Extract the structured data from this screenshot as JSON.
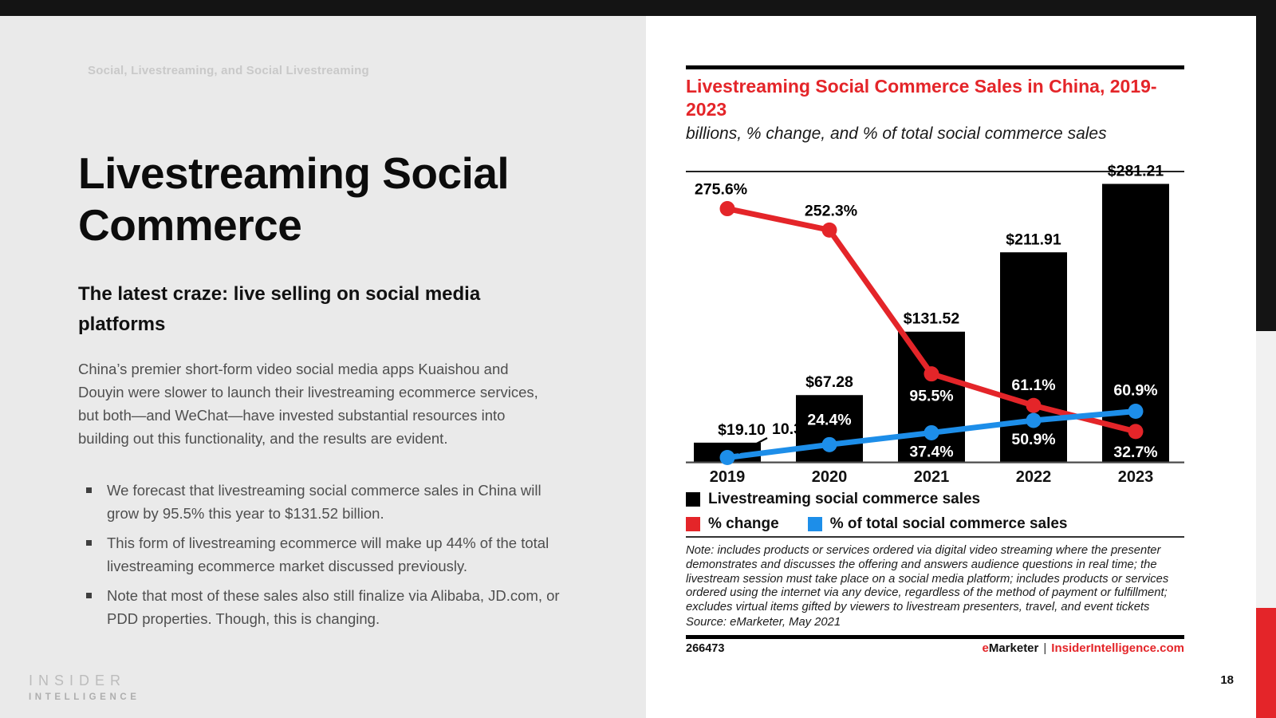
{
  "left": {
    "eyebrow": "Social, Livestreaming, and Social Livestreaming",
    "title": "Livestreaming Social Commerce",
    "heading": "The latest craze: live selling on social media platforms",
    "paragraph": "China’s premier short-form video social media apps Kuaishou and Douyin were slower to launch their livestreaming ecommerce services, but both—and WeChat—have invested substantial resources into building out this functionality, and the results are evident.",
    "bullets": [
      "We forecast that livestreaming social commerce sales in China will grow by 95.5% this year to $131.52 billion.",
      "This form of livestreaming ecommerce will make up 44% of the total livestreaming ecommerce market discussed previously.",
      "Note that most of these sales also still finalize via Alibaba, JD.com, or PDD properties. Though, this is changing."
    ],
    "logo_line1": "INSIDER",
    "logo_line2": "INTELLIGENCE",
    "page_number": "18"
  },
  "chart": {
    "title": "Livestreaming Social Commerce Sales in China, 2019-2023",
    "subtitle": "billions, % change, and % of total social commerce sales",
    "legend": [
      {
        "label": "Livestreaming social commerce sales",
        "color": "#000000"
      },
      {
        "label": "% change",
        "color": "#e42529"
      },
      {
        "label": "% of total social commerce sales",
        "color": "#1d8ee9"
      }
    ],
    "note": "Note: includes products or services ordered via digital video streaming where the presenter demonstrates and discusses the offering and answers audience questions in real time; the livestream session must take place on a social media platform; includes products or services ordered using the internet via any device, regardless of the method of payment or fulfillment; excludes virtual items gifted by viewers to livestream presenters, travel, and event tickets",
    "source": "Source: eMarketer, May 2021",
    "footer_id": "266473",
    "brand": {
      "e": "e",
      "marketer": "Marketer",
      "divider": "|",
      "site": "InsiderIntelligence.com"
    }
  },
  "chart_data": {
    "type": "bar",
    "subtype": "bar + two line series (combo)",
    "title": "Livestreaming Social Commerce Sales in China, 2019-2023",
    "subtitle": "billions, % change, and % of total social commerce sales",
    "categories": [
      "2019",
      "2020",
      "2021",
      "2022",
      "2023"
    ],
    "series": [
      {
        "name": "Livestreaming social commerce sales",
        "type": "bar",
        "unit": "billions of US dollars",
        "values": [
          19.1,
          67.28,
          131.52,
          211.91,
          281.21
        ],
        "labels": [
          "$19.10",
          "$67.28",
          "$131.52",
          "$211.91",
          "$281.21"
        ],
        "color": "#000000"
      },
      {
        "name": "% change",
        "type": "line",
        "unit": "percent",
        "values": [
          275.6,
          252.3,
          95.5,
          61.1,
          32.7
        ],
        "labels": [
          "275.6%",
          "252.3%",
          "95.5%",
          "61.1%",
          "32.7%"
        ],
        "color": "#e42529"
      },
      {
        "name": "% of total social commerce sales",
        "type": "line",
        "unit": "percent",
        "values": [
          10.3,
          24.4,
          37.4,
          50.9,
          60.9
        ],
        "labels": [
          "10.3%",
          "24.4%",
          "37.4%",
          "50.9%",
          "60.9%"
        ],
        "color": "#1d8ee9"
      }
    ],
    "xlabel": "",
    "ylabel": "",
    "grid": false,
    "legend_position": "bottom",
    "ylim_bars": [
      0,
      290
    ]
  },
  "colors": {
    "accent_red": "#e42529",
    "line_blue": "#1d8ee9",
    "bar_black": "#000000",
    "page_background": "#eaeaea",
    "card_background": "#ffffff",
    "top_bar": "#141414"
  }
}
